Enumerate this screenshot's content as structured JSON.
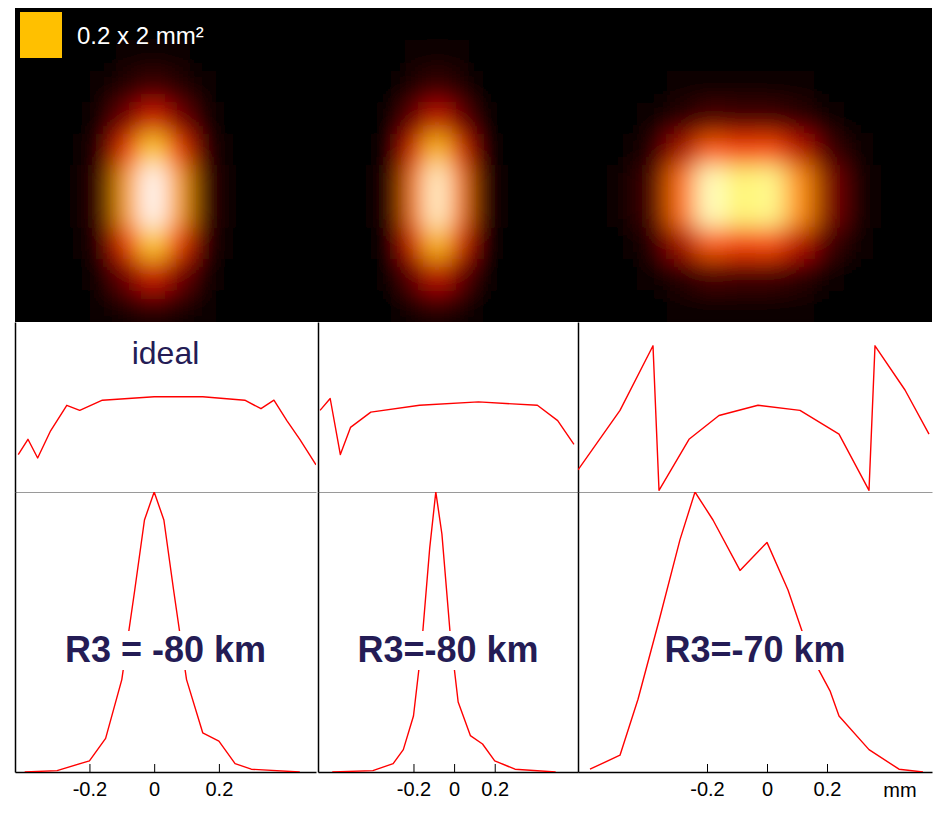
{
  "chart_data": [
    {
      "type": "heatmap",
      "annotation": "0.2 x 2 mm²",
      "tick_labels": false,
      "cells": [
        [
          0,
          0,
          0,
          0,
          0.01,
          0.01,
          0.01,
          0,
          0,
          0,
          0,
          0
        ],
        [
          0,
          0,
          0,
          0.01,
          0.02,
          0.04,
          0.02,
          0.01,
          0,
          0,
          0,
          0
        ],
        [
          0,
          0,
          0,
          0.02,
          0.09,
          0.14,
          0.09,
          0.02,
          0,
          0,
          0,
          0
        ],
        [
          0,
          0,
          0,
          0.05,
          0.22,
          0.36,
          0.22,
          0.05,
          0,
          0,
          0,
          0
        ],
        [
          0,
          0,
          0.01,
          0.1,
          0.42,
          0.69,
          0.42,
          0.1,
          0.01,
          0,
          0,
          0
        ],
        [
          0,
          0,
          0.01,
          0.13,
          0.59,
          0.96,
          0.59,
          0.13,
          0.01,
          0,
          0,
          0
        ],
        [
          0,
          0,
          0.01,
          0.13,
          0.59,
          0.96,
          0.59,
          0.13,
          0.01,
          0,
          0,
          0
        ],
        [
          0,
          0,
          0.01,
          0.1,
          0.42,
          0.69,
          0.42,
          0.1,
          0.01,
          0,
          0,
          0
        ],
        [
          0,
          0,
          0,
          0.05,
          0.22,
          0.36,
          0.22,
          0.05,
          0,
          0,
          0,
          0
        ],
        [
          0,
          0,
          0,
          0.02,
          0.09,
          0.14,
          0.09,
          0.02,
          0,
          0,
          0,
          0
        ]
      ]
    },
    {
      "type": "heatmap",
      "tick_labels": false,
      "cells": [
        [
          0,
          0,
          0,
          0,
          0.01,
          0.01,
          0.01,
          0,
          0,
          0,
          0,
          0
        ],
        [
          0,
          0,
          0,
          0,
          0.02,
          0.04,
          0.02,
          0,
          0,
          0,
          0,
          0
        ],
        [
          0,
          0,
          0,
          0.01,
          0.08,
          0.13,
          0.08,
          0.01,
          0,
          0,
          0,
          0
        ],
        [
          0,
          0,
          0,
          0.04,
          0.2,
          0.34,
          0.2,
          0.04,
          0,
          0,
          0,
          0
        ],
        [
          0,
          0,
          0.01,
          0.07,
          0.38,
          0.66,
          0.38,
          0.07,
          0.01,
          0,
          0,
          0
        ],
        [
          0,
          0,
          0.01,
          0.1,
          0.53,
          0.91,
          0.53,
          0.1,
          0.01,
          0,
          0,
          0
        ],
        [
          0,
          0,
          0.01,
          0.1,
          0.53,
          0.91,
          0.53,
          0.1,
          0.01,
          0,
          0,
          0
        ],
        [
          0,
          0,
          0.01,
          0.07,
          0.38,
          0.66,
          0.38,
          0.07,
          0.01,
          0,
          0,
          0
        ],
        [
          0,
          0,
          0,
          0.04,
          0.2,
          0.34,
          0.2,
          0.04,
          0,
          0,
          0,
          0
        ],
        [
          0,
          0,
          0,
          0.01,
          0.08,
          0.13,
          0.08,
          0.01,
          0,
          0,
          0,
          0
        ]
      ]
    },
    {
      "type": "heatmap",
      "tick_labels": false,
      "cells": [
        [
          0,
          0,
          0,
          0,
          0,
          0,
          0,
          0,
          0,
          0,
          0,
          0
        ],
        [
          0,
          0,
          0,
          0,
          0,
          0,
          0,
          0,
          0,
          0,
          0,
          0
        ],
        [
          0,
          0,
          0,
          0.02,
          0.03,
          0.03,
          0.03,
          0.02,
          0.01,
          0,
          0,
          0
        ],
        [
          0,
          0,
          0.02,
          0.09,
          0.15,
          0.14,
          0.14,
          0.1,
          0.04,
          0.01,
          0,
          0
        ],
        [
          0,
          0.01,
          0.08,
          0.28,
          0.48,
          0.43,
          0.45,
          0.31,
          0.13,
          0.03,
          0,
          0
        ],
        [
          0,
          0.02,
          0.14,
          0.51,
          0.88,
          0.79,
          0.82,
          0.56,
          0.23,
          0.05,
          0,
          0
        ],
        [
          0,
          0.02,
          0.14,
          0.51,
          0.88,
          0.79,
          0.82,
          0.56,
          0.23,
          0.05,
          0,
          0
        ],
        [
          0,
          0.01,
          0.08,
          0.28,
          0.48,
          0.43,
          0.45,
          0.31,
          0.13,
          0.03,
          0,
          0
        ],
        [
          0,
          0,
          0.02,
          0.09,
          0.15,
          0.14,
          0.14,
          0.1,
          0.04,
          0.01,
          0,
          0
        ],
        [
          0,
          0,
          0,
          0.02,
          0.03,
          0.03,
          0.03,
          0.02,
          0.01,
          0,
          0,
          0
        ]
      ]
    },
    {
      "type": "line",
      "annotation": "ideal",
      "color": "#ff0000",
      "tick_labels": false,
      "x": [
        -0.42,
        -0.39,
        -0.36,
        -0.32,
        -0.27,
        -0.23,
        -0.16,
        0,
        0.15,
        0.28,
        0.33,
        0.37,
        0.41,
        0.45,
        0.48,
        0.5
      ],
      "values": [
        0.22,
        0.31,
        0.2,
        0.36,
        0.51,
        0.48,
        0.54,
        0.56,
        0.56,
        0.54,
        0.49,
        0.54,
        0.42,
        0.31,
        0.22,
        0.16
      ],
      "xlim": [
        -0.43,
        0.5
      ],
      "ylim": [
        0,
        1
      ]
    },
    {
      "type": "line",
      "color": "#ff0000",
      "tick_labels": false,
      "x": [
        -0.66,
        -0.61,
        -0.56,
        -0.51,
        -0.41,
        -0.17,
        0.12,
        0.41,
        0.51,
        0.59
      ],
      "values": [
        0.48,
        0.55,
        0.22,
        0.38,
        0.47,
        0.51,
        0.53,
        0.51,
        0.42,
        0.28
      ],
      "xlim": [
        -0.67,
        0.61
      ],
      "ylim": [
        0,
        1
      ]
    },
    {
      "type": "line",
      "color": "#ff0000",
      "tick_labels": false,
      "x": [
        -0.63,
        -0.49,
        -0.38,
        -0.36,
        -0.26,
        -0.16,
        -0.03,
        0.11,
        0.24,
        0.34,
        0.36,
        0.46,
        0.54
      ],
      "values": [
        0.13,
        0.48,
        0.86,
        0.01,
        0.31,
        0.45,
        0.51,
        0.48,
        0.34,
        0.01,
        0.86,
        0.6,
        0.34
      ],
      "xlim": [
        -0.63,
        0.55
      ],
      "ylim": [
        0,
        1
      ]
    },
    {
      "type": "line",
      "annotation": "R3 = -80 km",
      "color": "#ff0000",
      "tick_labels": "x",
      "x": [
        -0.4,
        -0.3,
        -0.2,
        -0.15,
        -0.1,
        -0.06,
        -0.03,
        0,
        0.03,
        0.06,
        0.1,
        0.15,
        0.2,
        0.25,
        0.3,
        0.45
      ],
      "values": [
        0,
        0.005,
        0.04,
        0.12,
        0.33,
        0.65,
        0.9,
        1,
        0.9,
        0.65,
        0.33,
        0.14,
        0.11,
        0.03,
        0.01,
        0
      ],
      "xlim": [
        -0.43,
        0.5
      ],
      "ylim": [
        0,
        1
      ],
      "xticks": [
        -0.2,
        0,
        0.2
      ]
    },
    {
      "type": "line",
      "annotation": "R3=-80 km",
      "color": "#ff0000",
      "tick_labels": "x",
      "x": [
        -0.6,
        -0.4,
        -0.3,
        -0.25,
        -0.2,
        -0.16,
        -0.12,
        -0.09,
        -0.06,
        -0.02,
        0.02,
        0.08,
        0.14,
        0.2,
        0.3,
        0.5
      ],
      "values": [
        0,
        0.005,
        0.03,
        0.08,
        0.2,
        0.45,
        0.8,
        1,
        0.85,
        0.5,
        0.25,
        0.13,
        0.1,
        0.04,
        0.01,
        0
      ],
      "xlim": [
        -0.67,
        0.61
      ],
      "ylim": [
        0,
        1
      ],
      "xticks": [
        -0.2,
        0,
        0.2
      ]
    },
    {
      "type": "line",
      "annotation": "R3=-70 km",
      "x_label": "mm",
      "color": "#ff0000",
      "tick_labels": "x",
      "x": [
        -0.59,
        -0.49,
        -0.43,
        -0.36,
        -0.29,
        -0.24,
        -0.18,
        -0.09,
        0,
        0.07,
        0.14,
        0.21,
        0.24,
        0.34,
        0.44,
        0.52
      ],
      "values": [
        0.01,
        0.06,
        0.26,
        0.54,
        0.83,
        1,
        0.9,
        0.72,
        0.82,
        0.65,
        0.43,
        0.29,
        0.2,
        0.08,
        0.01,
        0
      ],
      "xlim": [
        -0.63,
        0.55
      ],
      "ylim": [
        0,
        1
      ],
      "xticks": [
        -0.2,
        0,
        0.2
      ]
    }
  ]
}
